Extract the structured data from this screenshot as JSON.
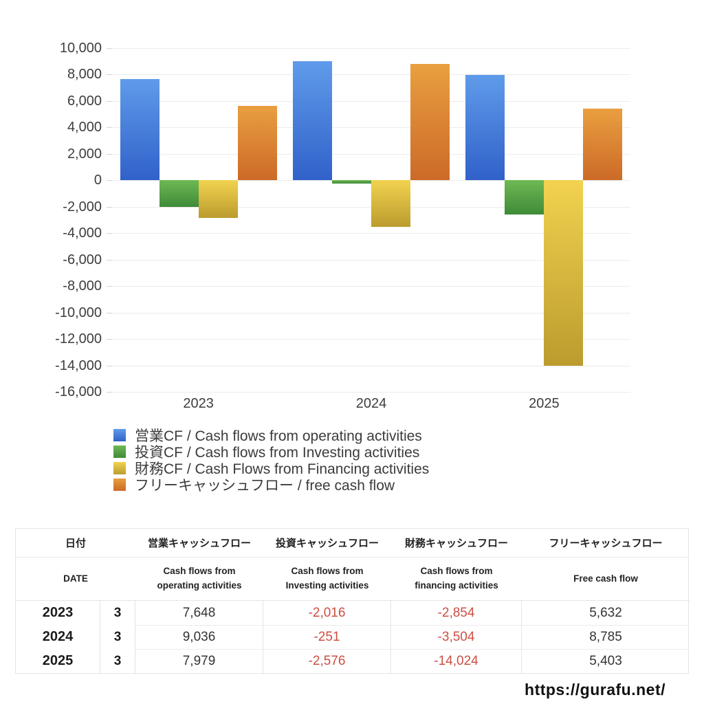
{
  "page": {
    "footer_url": "https://gurafu.net/"
  },
  "chart_data": {
    "type": "bar",
    "title": "",
    "categories": [
      "2023",
      "2024",
      "2025"
    ],
    "series": [
      {
        "name": "営業CF / Cash flows from operating activities",
        "values": [
          7648,
          9036,
          7979
        ],
        "color_top": "#5f9bea",
        "color_bottom": "#3161c9"
      },
      {
        "name": "投資CF / Cash flows from Investing activities",
        "values": [
          -2016,
          -251,
          -2576
        ],
        "color_top": "#6eb854",
        "color_bottom": "#3f8b37"
      },
      {
        "name": "財務CF / Cash Flows from Financing activities",
        "values": [
          -2854,
          -3504,
          -14024
        ],
        "color_top": "#f2d24f",
        "color_bottom": "#bb9c2e"
      },
      {
        "name": "フリーキャッシュフロー / free cash flow",
        "values": [
          5632,
          8785,
          5403
        ],
        "color_top": "#e99f3f",
        "color_bottom": "#cc6a28"
      }
    ],
    "y_axis": {
      "min": -16000,
      "max": 10000,
      "step": 2000
    },
    "ylim": [
      -16000,
      10000
    ],
    "grid": true,
    "legend_position": "bottom-left",
    "xlabel": "",
    "ylabel": ""
  },
  "table": {
    "header_ja": [
      "日付",
      "営業キャッシュフロー",
      "投資キャッシュフロー",
      "財務キャッシュフロー",
      "フリーキャッシュフロー"
    ],
    "header_en": [
      "DATE",
      "Cash flows from operating activities",
      "Cash flows from Investing activities",
      "Cash flows from financing activities",
      "Free cash flow"
    ],
    "rows": [
      {
        "year": "2023",
        "month": "3",
        "values": [
          "7,648",
          "-2,016",
          "-2,854",
          "5,632"
        ]
      },
      {
        "year": "2024",
        "month": "3",
        "values": [
          "9,036",
          "-251",
          "-3,504",
          "8,785"
        ]
      },
      {
        "year": "2025",
        "month": "3",
        "values": [
          "7,979",
          "-2,576",
          "-14,024",
          "5,403"
        ]
      }
    ],
    "negative_color": "#cc4f42"
  }
}
